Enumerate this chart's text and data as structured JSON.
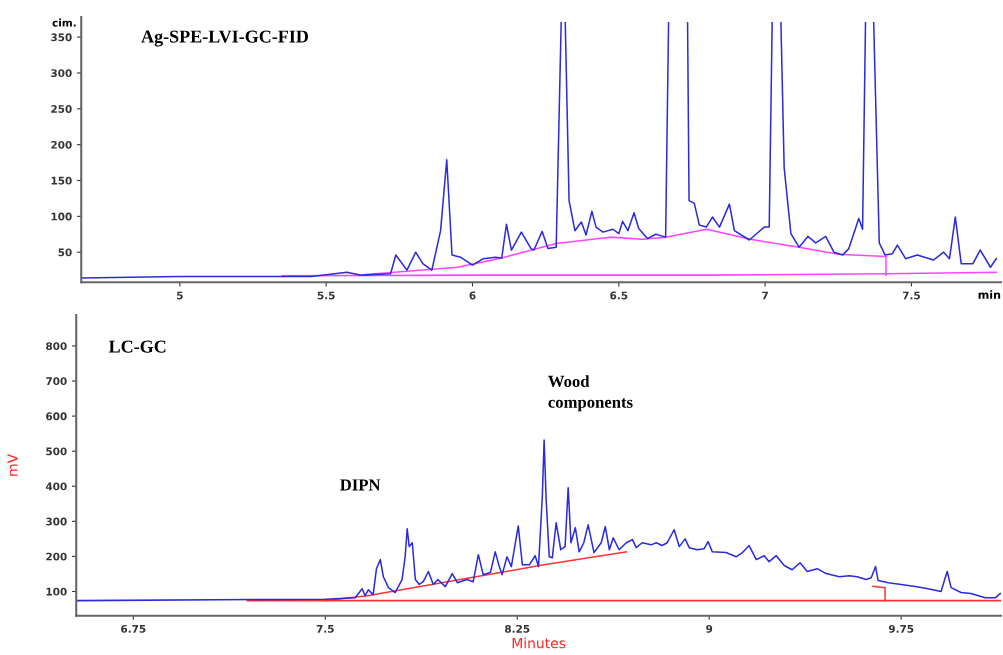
{
  "chart_data": [
    {
      "type": "line",
      "xlabel": "min",
      "ylabel": "cim.",
      "xlim": [
        4.663,
        7.806
      ],
      "ylim": [
        8,
        378
      ],
      "xticks": [
        5,
        5.5,
        6,
        6.5,
        7,
        7.5
      ],
      "yticks": [
        50,
        100,
        150,
        200,
        250,
        300,
        350
      ],
      "grid": false,
      "annotations": [
        "Ag-SPE-LVI-GC-FID"
      ],
      "series": [
        {
          "color": "#ff44ff",
          "x": [
            5.35,
            6.05,
            6.8,
            7.413,
            7.79
          ],
          "values": [
            17,
            18,
            18,
            20,
            22
          ]
        },
        {
          "color": "#ff44ff",
          "x": [
            5.636,
            5.95,
            6.1,
            6.286,
            6.47,
            6.58,
            6.66,
            6.8,
            6.95,
            7.116,
            7.25,
            7.413,
            7.413
          ],
          "values": [
            19,
            29,
            42,
            62,
            71,
            68,
            71,
            82,
            68,
            57,
            47,
            44,
            18
          ]
        },
        {
          "color": "#2b2bdd",
          "x": [
            4.663,
            5.0,
            5.45,
            5.571,
            5.62,
            5.72,
            5.738,
            5.776,
            5.806,
            5.83,
            5.861,
            5.891,
            5.912,
            5.93,
            5.959,
            6.0,
            6.037,
            6.078,
            6.1,
            6.116,
            6.133,
            6.167,
            6.2,
            6.21,
            6.238,
            6.258,
            6.286,
            6.303,
            6.31,
            6.317,
            6.33,
            6.35,
            6.372,
            6.388,
            6.408,
            6.422,
            6.446,
            6.48,
            6.5,
            6.513,
            6.531,
            6.552,
            6.568,
            6.598,
            6.626,
            6.66,
            6.67,
            6.7,
            6.735,
            6.74,
            6.758,
            6.775,
            6.799,
            6.82,
            6.844,
            6.878,
            6.895,
            6.946,
            6.997,
            7.014,
            7.024,
            7.04,
            7.054,
            7.065,
            7.088,
            7.116,
            7.146,
            7.173,
            7.207,
            7.235,
            7.265,
            7.286,
            7.32,
            7.333,
            7.343,
            7.357,
            7.371,
            7.39,
            7.41,
            7.435,
            7.452,
            7.48,
            7.52,
            7.575,
            7.61,
            7.63,
            7.65,
            7.67,
            7.71,
            7.735,
            7.77,
            7.79
          ],
          "values": [
            14,
            16,
            16,
            22,
            18,
            20,
            46,
            25,
            50,
            34,
            25,
            80,
            179,
            46,
            43,
            32,
            41,
            43,
            42,
            89,
            53,
            78,
            55,
            53,
            79,
            55,
            57,
            370,
            null,
            370,
            122,
            80,
            92,
            74,
            107,
            85,
            78,
            82,
            76,
            93,
            80,
            105,
            83,
            69,
            75,
            71,
            370,
            null,
            370,
            122,
            118,
            88,
            85,
            99,
            85,
            117,
            80,
            67,
            85,
            85,
            370,
            null,
            370,
            168,
            76,
            57,
            72,
            63,
            72,
            50,
            46,
            55,
            97,
            82,
            370,
            null,
            370,
            63,
            46,
            48,
            60,
            41,
            46,
            39,
            50,
            41,
            99,
            34,
            34,
            53,
            29,
            41
          ]
        }
      ]
    },
    {
      "type": "line",
      "xlabel": "Minutes",
      "ylabel": "mV",
      "xlim": [
        6.527,
        10.14
      ],
      "ylim": [
        31,
        888
      ],
      "xticks": [
        6.75,
        7.5,
        8.25,
        9,
        9.75
      ],
      "yticks": [
        100,
        200,
        300,
        400,
        500,
        600,
        700,
        800
      ],
      "grid": false,
      "annotations": [
        "LC-GC",
        "DIPN",
        "Wood\ncomponents"
      ],
      "series": [
        {
          "color": "#ff3333",
          "x": [
            7.195,
            8.3,
            9.687,
            10.14
          ],
          "values": [
            74,
            74,
            74,
            74
          ]
        },
        {
          "color": "#ff3333",
          "x": [
            7.5,
            7.664,
            8.184,
            8.336,
            8.676
          ],
          "values": [
            74,
            88,
            154,
            174,
            213
          ]
        },
        {
          "color": "#ff3333",
          "x": [
            9.64,
            9.687,
            9.687
          ],
          "values": [
            115,
            111,
            74
          ]
        },
        {
          "color": "#2b2bdd",
          "x": [
            6.527,
            7.5,
            7.617,
            7.644,
            7.656,
            7.668,
            7.687,
            7.7,
            7.715,
            7.727,
            7.747,
            7.773,
            7.8,
            7.812,
            7.82,
            7.828,
            7.84,
            7.852,
            7.867,
            7.883,
            7.903,
            7.922,
            7.94,
            7.969,
            7.996,
            8.016,
            8.054,
            8.078,
            8.098,
            8.117,
            8.145,
            8.164,
            8.18,
            8.191,
            8.21,
            8.227,
            8.254,
            8.27,
            8.297,
            8.32,
            8.333,
            8.348,
            8.355,
            8.363,
            8.375,
            8.387,
            8.402,
            8.42,
            8.437,
            8.449,
            8.46,
            8.477,
            8.492,
            8.51,
            8.527,
            8.55,
            8.578,
            8.594,
            8.61,
            8.625,
            8.648,
            8.676,
            8.7,
            8.715,
            8.738,
            8.773,
            8.793,
            8.816,
            8.836,
            8.863,
            8.883,
            8.906,
            8.922,
            8.953,
            8.98,
            8.996,
            9.012,
            9.066,
            9.105,
            9.13,
            9.156,
            9.184,
            9.215,
            9.234,
            9.262,
            9.293,
            9.324,
            9.355,
            9.383,
            9.422,
            9.457,
            9.508,
            9.547,
            9.578,
            9.613,
            9.633,
            9.65,
            9.66,
            9.7,
            9.75,
            9.805,
            9.855,
            9.906,
            9.92,
            9.93,
            9.945,
            9.984,
            10.023,
            10.078,
            10.117,
            10.137
          ],
          "values": [
            74,
            78,
            82,
            108,
            88,
            105,
            91,
            165,
            191,
            142,
            111,
            97,
            134,
            199,
            279,
            228,
            239,
            134,
            120,
            128,
            157,
            120,
            134,
            114,
            151,
            125,
            134,
            128,
            205,
            148,
            154,
            213,
            171,
            148,
            199,
            171,
            287,
            176,
            176,
            202,
            171,
            370,
            532,
            361,
            199,
            196,
            296,
            219,
            228,
            396,
            239,
            282,
            213,
            239,
            290,
            211,
            239,
            285,
            219,
            253,
            219,
            239,
            248,
            225,
            239,
            233,
            239,
            231,
            239,
            276,
            228,
            250,
            225,
            219,
            222,
            242,
            213,
            211,
            199,
            211,
            231,
            191,
            202,
            185,
            202,
            174,
            162,
            182,
            157,
            165,
            151,
            142,
            145,
            142,
            134,
            139,
            171,
            131,
            125,
            120,
            114,
            108,
            100,
            134,
            157,
            111,
            97,
            94,
            82,
            82,
            94
          ]
        }
      ]
    }
  ]
}
